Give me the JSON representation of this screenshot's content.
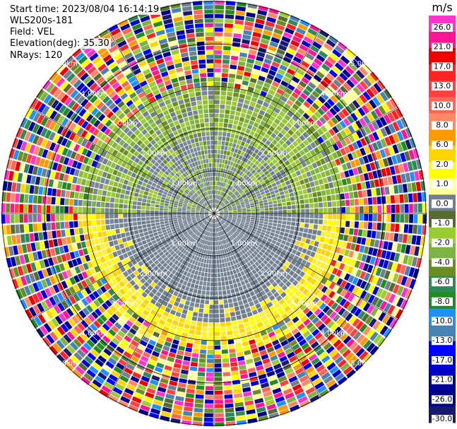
{
  "info": {
    "start_time": "Start time: 2023/08/04 16:14:19",
    "instrument": "WLS200s-181",
    "field": "Field: VEL",
    "elevation": "Elevation(deg): 35.30",
    "nrays": "NRays: 120"
  },
  "colorbar": {
    "unit": "m/s",
    "ticks": [
      "26.0",
      "21.0",
      "17.0",
      "13.0",
      "10.0",
      "8.0",
      "6.0",
      "2.0",
      "1.0",
      "0.0",
      "-1.0",
      "-2.0",
      "-4.0",
      "-6.0",
      "-8.0",
      "-10.0",
      "-13.0",
      "-17.0",
      "-21.0",
      "-26.0",
      "-30.0"
    ],
    "colors": [
      "#ff33cc",
      "#ff1493",
      "#ee0000",
      "#ff2222",
      "#ff4040",
      "#ff6655",
      "#ff8866",
      "#ff9900",
      "#ffd400",
      "#ffff00",
      "#ffff99",
      "#708090",
      "#556b2f",
      "#9acd32",
      "#7cb342",
      "#6b8e23",
      "#2e8b57",
      "#228b22",
      "#1e90ff",
      "#4682b4",
      "#0000ff",
      "#0000cd",
      "#000099",
      "#00008b",
      "#191970"
    ]
  },
  "chart_data": {
    "type": "ppi",
    "field": "VEL",
    "units": "m/s",
    "nrays": 120,
    "elevation_deg": 35.3,
    "range_rings_km": [
      1.0,
      2.0,
      3.0,
      4.0,
      5.0
    ],
    "ring_label_texts": [
      "1.00km",
      "2.00km",
      "3.00km",
      "4.00km",
      "5.00km"
    ],
    "colorbar_range": [
      -30.0,
      26.0
    ]
  }
}
